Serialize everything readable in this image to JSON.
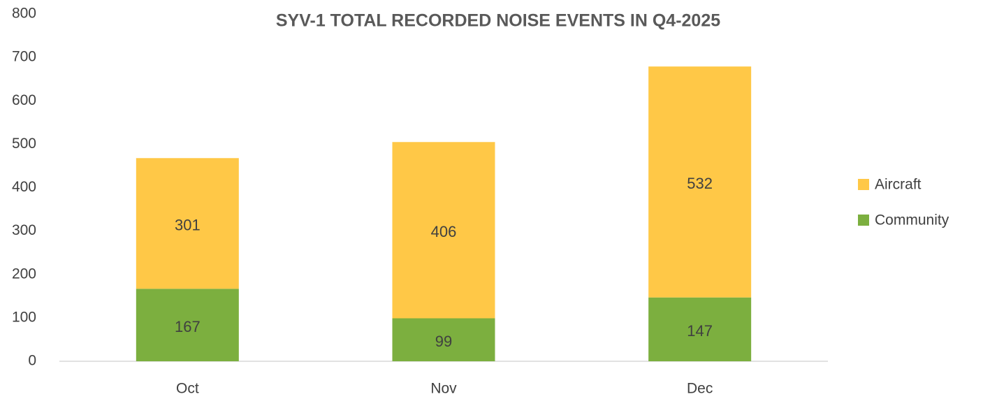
{
  "chart_data": {
    "type": "stacked_bar",
    "title": "SYV-1 TOTAL RECORDED NOISE EVENTS IN Q4-2025",
    "categories": [
      "Oct",
      "Nov",
      "Dec"
    ],
    "series": [
      {
        "name": "Community",
        "color": "#7CAF3F",
        "values": [
          167,
          99,
          147
        ]
      },
      {
        "name": "Aircraft",
        "color": "#FFC847",
        "values": [
          301,
          406,
          532
        ]
      }
    ],
    "ylim": [
      0,
      800
    ],
    "yticks": [
      0,
      100,
      200,
      300,
      400,
      500,
      600,
      700,
      800
    ],
    "grid": false,
    "legend": "right"
  }
}
